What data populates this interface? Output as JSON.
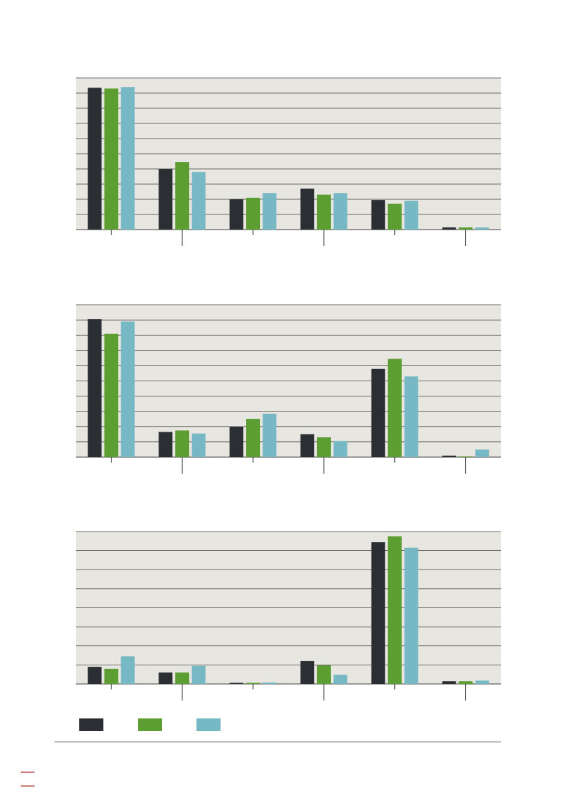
{
  "colors": {
    "panel_bg": "#e8e6e1",
    "grid": "#3b3b3b",
    "axis": "#3b3b3b",
    "series": [
      "#2b2e33",
      "#5c9e32",
      "#76b8c3"
    ],
    "footer_line": "#7a7a7a",
    "footer_mark": "#b12a2a"
  },
  "legend": {
    "placement": "bottom-left",
    "entries": [
      "",
      "",
      ""
    ]
  },
  "chart_data": [
    {
      "type": "bar",
      "title": "",
      "xlabel": "",
      "ylabel": "",
      "grid": true,
      "ylim": [
        0,
        100
      ],
      "gridlines": 10,
      "categories": [
        "",
        "",
        "",
        "",
        "",
        ""
      ],
      "series": [
        {
          "values": [
            93.5,
            40,
            20,
            27,
            19.5,
            1.5
          ]
        },
        {
          "values": [
            93,
            44.5,
            21,
            23,
            17,
            1.5
          ]
        },
        {
          "values": [
            94,
            38,
            24,
            24,
            19,
            1.5
          ]
        }
      ]
    },
    {
      "type": "bar",
      "title": "",
      "xlabel": "",
      "ylabel": "",
      "grid": true,
      "ylim": [
        0,
        100
      ],
      "gridlines": 10,
      "categories": [
        "",
        "",
        "",
        "",
        "",
        ""
      ],
      "series": [
        {
          "values": [
            90.5,
            16.5,
            20,
            15,
            58,
            1
          ]
        },
        {
          "values": [
            81,
            17.5,
            25,
            13,
            64.5,
            0.5
          ]
        },
        {
          "values": [
            89,
            15.5,
            28.5,
            10.5,
            53,
            5
          ]
        }
      ]
    },
    {
      "type": "bar",
      "title": "",
      "xlabel": "",
      "ylabel": "",
      "grid": true,
      "ylim": [
        0,
        80
      ],
      "gridlines": 8,
      "categories": [
        "",
        "",
        "",
        "",
        "",
        ""
      ],
      "series": [
        {
          "values": [
            9,
            6,
            0.6,
            12,
            74.5,
            1.4
          ]
        },
        {
          "values": [
            8,
            6,
            0.6,
            9.8,
            77.5,
            1.4
          ]
        },
        {
          "values": [
            14.5,
            9.5,
            0.8,
            4.8,
            71.5,
            1.8
          ]
        }
      ]
    }
  ]
}
